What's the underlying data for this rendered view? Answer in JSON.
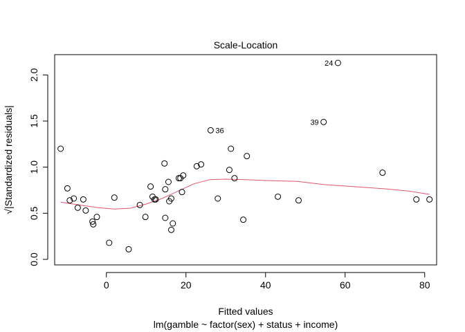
{
  "chart_data": {
    "type": "scatter",
    "title": "Scale-Location",
    "xlabel": "Fitted values",
    "subtitle": "lm(gamble ~ factor(sex) + status + income)",
    "ylabel": "√|Standardized residuals|",
    "xlim": [
      -13,
      83
    ],
    "ylim": [
      -0.06,
      2.22
    ],
    "x_ticks": [
      0,
      20,
      40,
      60,
      80
    ],
    "x_tick_labels": [
      "0",
      "20",
      "40",
      "60",
      "80"
    ],
    "y_ticks": [
      0.0,
      0.5,
      1.0,
      1.5,
      2.0
    ],
    "y_tick_labels": [
      "0.0",
      "0.5",
      "1.0",
      "1.5",
      "2.0"
    ],
    "grid": false,
    "colors": {
      "smooth": "#DF536B",
      "points": "#000000"
    },
    "points": {
      "x": [
        -11.5,
        -9.8,
        -9.2,
        -8.2,
        -7.2,
        -5.8,
        -5.2,
        -3.5,
        -3.3,
        -2.4,
        0.7,
        2.0,
        5.6,
        8.4,
        9.8,
        11.1,
        11.6,
        12.1,
        12.4,
        14.6,
        14.8,
        14.8,
        15.6,
        15.8,
        16.3,
        16.3,
        16.7,
        18.2,
        18.6,
        19.0,
        19.3,
        22.7,
        23.8,
        26.2,
        28.0,
        30.9,
        31.3,
        32.2,
        34.4,
        35.3,
        43.1,
        48.3,
        54.6,
        58.2,
        69.4,
        77.9,
        81.2
      ],
      "y": [
        1.2,
        0.77,
        0.64,
        0.66,
        0.56,
        0.65,
        0.53,
        0.41,
        0.38,
        0.46,
        0.18,
        0.67,
        0.11,
        0.59,
        0.46,
        0.79,
        0.68,
        0.65,
        0.65,
        1.04,
        0.76,
        0.45,
        0.84,
        0.63,
        0.66,
        0.32,
        0.39,
        0.88,
        0.88,
        0.73,
        0.91,
        1.01,
        1.03,
        1.4,
        0.66,
        0.97,
        1.2,
        0.88,
        0.43,
        1.12,
        0.68,
        0.64,
        1.49,
        2.13,
        0.94,
        0.65,
        0.65
      ]
    },
    "labeled_points": [
      {
        "label": "24",
        "x": 58.2,
        "y": 2.13,
        "side": "left"
      },
      {
        "label": "39",
        "x": 54.6,
        "y": 1.49,
        "side": "left"
      },
      {
        "label": "36",
        "x": 26.2,
        "y": 1.4,
        "side": "right"
      }
    ],
    "smooth_line": {
      "x": [
        -11.5,
        -6,
        -2,
        2,
        6,
        10,
        14,
        18,
        22,
        26,
        30,
        35,
        40,
        48,
        55,
        62,
        70,
        76,
        81.2
      ],
      "y": [
        0.62,
        0.585,
        0.56,
        0.545,
        0.555,
        0.6,
        0.66,
        0.74,
        0.82,
        0.865,
        0.87,
        0.865,
        0.855,
        0.845,
        0.81,
        0.79,
        0.765,
        0.74,
        0.705
      ]
    }
  }
}
